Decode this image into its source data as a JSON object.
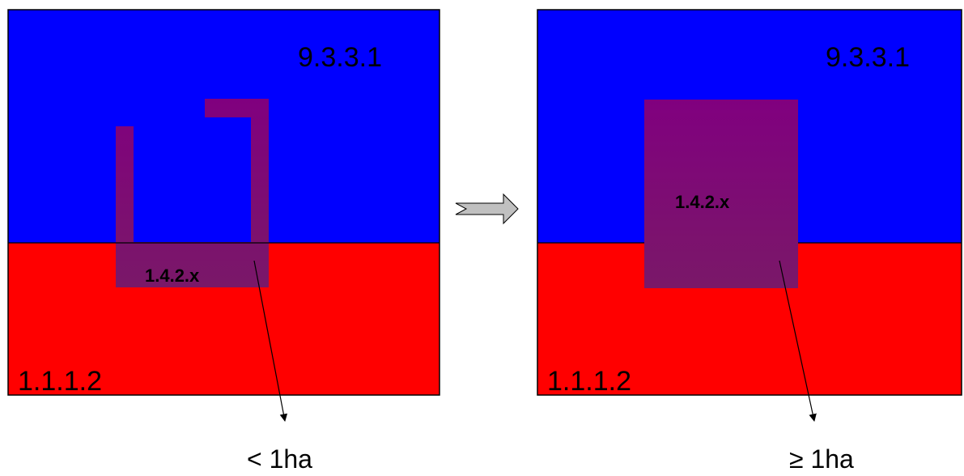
{
  "colors": {
    "upper_class": "#0000ff",
    "lower_class": "#ff0000",
    "small_class": "#800080",
    "arrow_fill": "#c0c0c0",
    "outline": "#000000"
  },
  "left_panel": {
    "upper_label": "9.3.3.1",
    "lower_label": "1.1.1.2",
    "center_label": "1.4.2.x",
    "area_label": "< 1ha"
  },
  "right_panel": {
    "upper_label": "9.3.3.1",
    "lower_label": "1.1.1.2",
    "center_label": "1.4.2.x",
    "area_label": "≥ 1ha"
  },
  "transition": {
    "icon": "right-arrow-icon"
  }
}
